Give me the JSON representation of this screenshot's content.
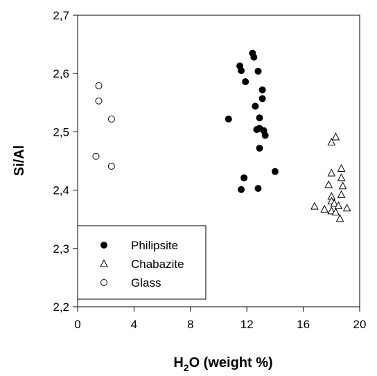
{
  "chart_data": {
    "type": "scatter",
    "xlabel_main": "H",
    "xlabel_sub": "2",
    "xlabel_rest": "O (weight  %)",
    "ylabel": "Si/Al",
    "xlim": [
      0,
      20
    ],
    "ylim": [
      2.2,
      2.7
    ],
    "x_ticks": [
      0,
      4,
      8,
      12,
      16,
      20
    ],
    "x_tick_labels": [
      "0",
      "4",
      "8",
      "12",
      "16",
      "20"
    ],
    "y_ticks": [
      2.2,
      2.3,
      2.4,
      2.5,
      2.6,
      2.7
    ],
    "y_tick_labels": [
      "2,2",
      "2,3",
      "2,4",
      "2,5",
      "2,6",
      "2,7"
    ],
    "grid": false,
    "legend_position": "bottom-left",
    "series": [
      {
        "name": "Philipsite",
        "marker": "filled-circle",
        "x": [
          12.4,
          12.5,
          11.5,
          11.6,
          12.8,
          11.9,
          13.1,
          13.1,
          12.6,
          10.7,
          12.9,
          12.7,
          13.2,
          12.9,
          13.3,
          12.9,
          14.0,
          11.8,
          11.6,
          12.8
        ],
        "y": [
          2.635,
          2.628,
          2.613,
          2.605,
          2.604,
          2.586,
          2.572,
          2.557,
          2.544,
          2.522,
          2.524,
          2.504,
          2.502,
          2.506,
          2.494,
          2.472,
          2.432,
          2.421,
          2.401,
          2.403
        ]
      },
      {
        "name": "Chabazite",
        "marker": "open-triangle",
        "x": [
          18.3,
          18.0,
          18.7,
          18.0,
          18.7,
          17.8,
          18.8,
          18.0,
          18.7,
          18.0,
          18.2,
          16.8,
          17.5,
          18.5,
          19.1,
          18.0,
          18.3,
          18.6
        ],
        "y": [
          2.491,
          2.482,
          2.437,
          2.429,
          2.421,
          2.409,
          2.407,
          2.389,
          2.392,
          2.381,
          2.377,
          2.372,
          2.367,
          2.373,
          2.369,
          2.364,
          2.362,
          2.351
        ]
      },
      {
        "name": "Glass",
        "marker": "open-circle",
        "x": [
          1.5,
          1.5,
          2.4,
          1.3,
          2.4
        ],
        "y": [
          2.579,
          2.553,
          2.522,
          2.458,
          2.441
        ]
      }
    ]
  }
}
